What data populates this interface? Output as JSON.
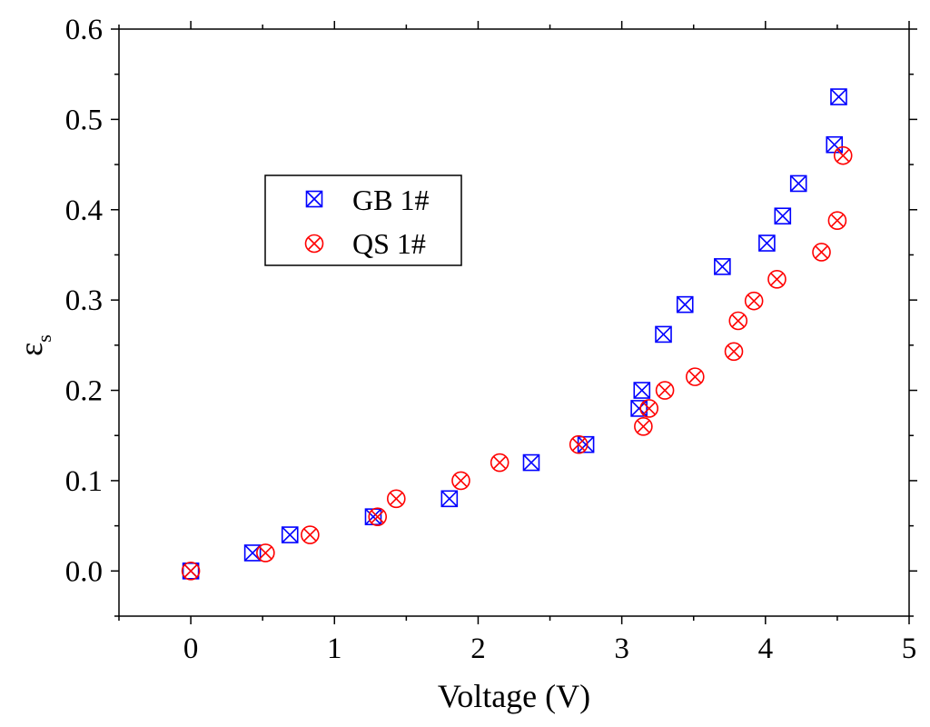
{
  "chart_data": {
    "type": "scatter",
    "xlabel": "Voltage (V)",
    "ylabel": "ε",
    "ylabel_subscript": "s",
    "xlim": [
      -0.5,
      5
    ],
    "ylim": [
      -0.05,
      0.6
    ],
    "xticks": [
      0,
      1,
      2,
      3,
      4,
      5
    ],
    "xtick_labels": [
      "0",
      "1",
      "2",
      "3",
      "4",
      "5"
    ],
    "yticks": [
      0.0,
      0.1,
      0.2,
      0.3,
      0.4,
      0.5,
      0.6
    ],
    "ytick_labels": [
      "0.0",
      "0.1",
      "0.2",
      "0.3",
      "0.4",
      "0.5",
      "0.6"
    ],
    "grid": false,
    "legend_position": "upper-left",
    "series": [
      {
        "name": "GB 1#",
        "marker": "square-x",
        "color": "#0000ff",
        "x": [
          0.0,
          0.43,
          0.69,
          1.27,
          1.8,
          2.37,
          2.75,
          3.12,
          3.14,
          3.29,
          3.44,
          3.7,
          4.01,
          4.12,
          4.23,
          4.48,
          4.51
        ],
        "y": [
          0.0,
          0.02,
          0.04,
          0.06,
          0.08,
          0.12,
          0.14,
          0.18,
          0.2,
          0.262,
          0.295,
          0.337,
          0.363,
          0.393,
          0.429,
          0.472,
          0.525
        ]
      },
      {
        "name": "QS 1#",
        "marker": "circle-x",
        "color": "#ff0000",
        "x": [
          0.0,
          0.52,
          0.83,
          1.3,
          1.43,
          1.88,
          2.15,
          2.7,
          3.15,
          3.19,
          3.3,
          3.51,
          3.78,
          3.81,
          3.92,
          4.08,
          4.39,
          4.5,
          4.54
        ],
        "y": [
          0.0,
          0.02,
          0.04,
          0.06,
          0.08,
          0.1,
          0.12,
          0.14,
          0.16,
          0.18,
          0.2,
          0.215,
          0.243,
          0.277,
          0.299,
          0.323,
          0.353,
          0.388,
          0.46
        ]
      }
    ]
  }
}
